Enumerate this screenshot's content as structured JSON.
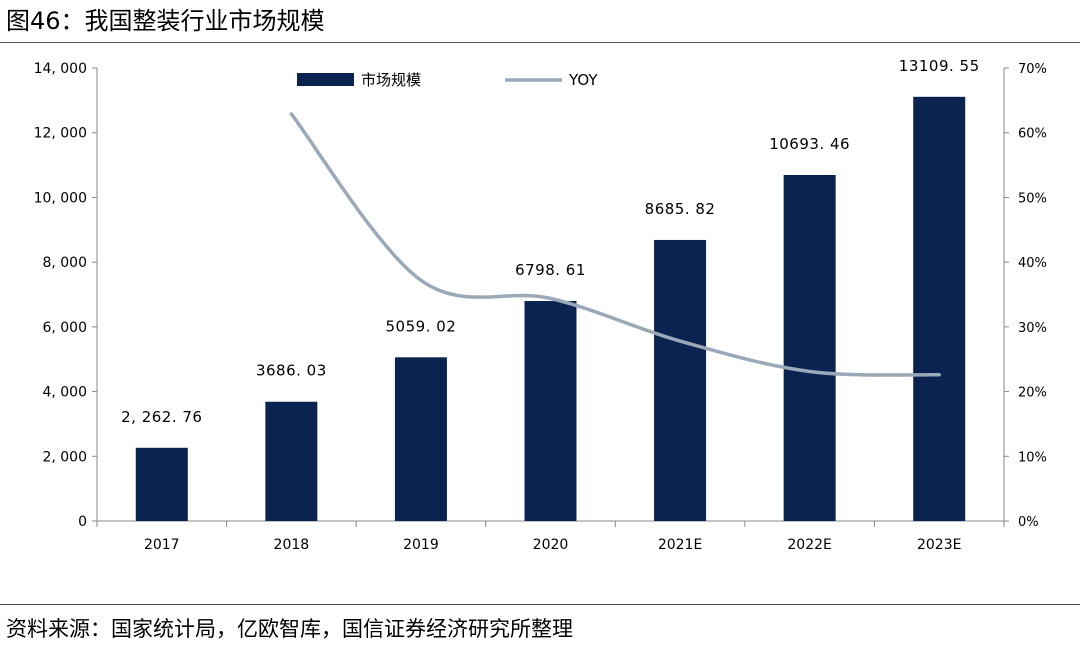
{
  "title": "图46：我国整装行业市场规模",
  "source": "资料来源：国家统计局，亿欧智库，国信证券经济研究所整理",
  "colors": {
    "bar": "#0b2350",
    "line": "#9aa9b8",
    "axis": "#888888",
    "text": "#000000"
  },
  "chart_data": {
    "type": "bar",
    "categories": [
      "2017",
      "2018",
      "2019",
      "2020",
      "2021E",
      "2022E",
      "2023E"
    ],
    "series": [
      {
        "name": "市场规模",
        "type": "bar",
        "axis": "left",
        "values": [
          2262.76,
          3686.03,
          5059.02,
          6798.61,
          8685.82,
          10693.46,
          13109.55
        ],
        "labels": [
          "2, 262. 76",
          "3686. 03",
          "5059. 02",
          "6798. 61",
          "8685. 82",
          "10693. 46",
          "13109. 55"
        ]
      },
      {
        "name": "YOY",
        "type": "line",
        "axis": "right",
        "values": [
          null,
          62.9,
          37.2,
          34.4,
          27.8,
          23.1,
          22.6
        ]
      }
    ],
    "y_left": {
      "range": [
        0,
        14000
      ],
      "ticks": [
        0,
        2000,
        4000,
        6000,
        8000,
        10000,
        12000,
        14000
      ],
      "tick_labels": [
        "0",
        "2, 000",
        "4, 000",
        "6, 000",
        "8, 000",
        "10, 000",
        "12, 000",
        "14, 000"
      ]
    },
    "y_right": {
      "range": [
        0,
        70
      ],
      "ticks": [
        0,
        10,
        20,
        30,
        40,
        50,
        60,
        70
      ],
      "tick_labels": [
        "0%",
        "10%",
        "20%",
        "30%",
        "40%",
        "50%",
        "60%",
        "70%"
      ]
    },
    "legend_position": "top-center",
    "grid": false
  }
}
